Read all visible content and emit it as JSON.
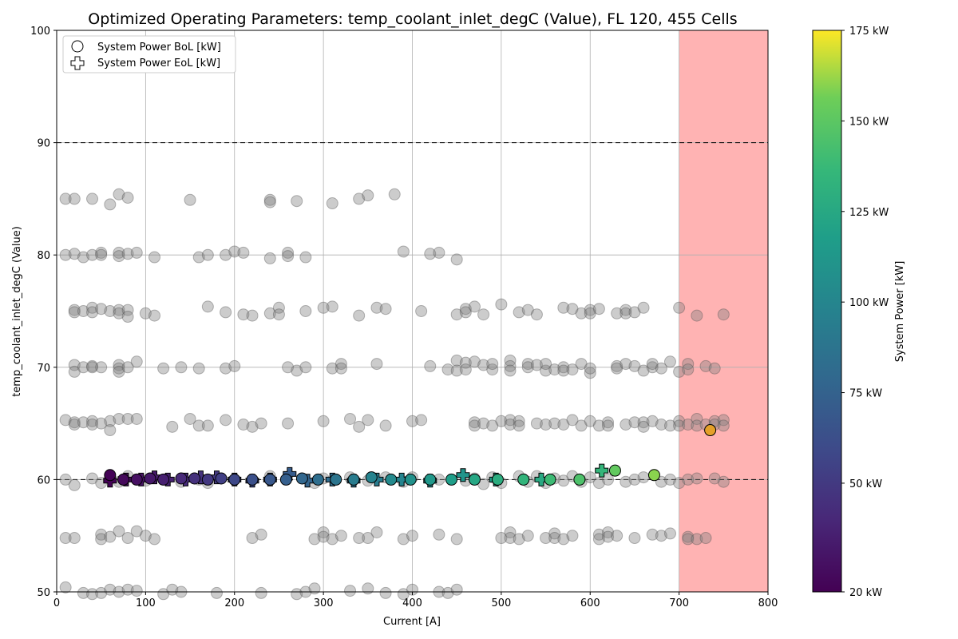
{
  "chart_data": {
    "type": "scatter",
    "title": "Optimized Operating Parameters: temp_coolant_inlet_degC (Value), FL 120, 455 Cells",
    "xlabel": "Current [A]",
    "ylabel": "temp_coolant_inlet_degC (Value)",
    "xlim": [
      0,
      800
    ],
    "ylim": [
      50,
      100
    ],
    "xticks": [
      0,
      100,
      200,
      300,
      400,
      500,
      600,
      700,
      800
    ],
    "yticks": [
      50,
      60,
      70,
      80,
      90,
      100
    ],
    "grid": true,
    "legend_position": "top-left",
    "legend": [
      {
        "label": "System Power BoL [kW]",
        "marker": "circle"
      },
      {
        "label": "System Power EoL [kW]",
        "marker": "plus"
      }
    ],
    "reference_lines": [
      60,
      90
    ],
    "forbidden_region": {
      "x_from": 700,
      "x_to": 800,
      "color": "#ffb3b3"
    },
    "colorbar": {
      "label": "System Power [kW]",
      "min": 20,
      "max": 175,
      "ticks": [
        "20 kW",
        "50 kW",
        "75 kW",
        "100 kW",
        "125 kW",
        "150 kW",
        "175 kW"
      ],
      "tick_values": [
        20,
        50,
        75,
        100,
        125,
        150,
        175
      ]
    },
    "bol_series": [
      {
        "x": 60,
        "y": 60.4,
        "p": 21
      },
      {
        "x": 75,
        "y": 60.0,
        "p": 24
      },
      {
        "x": 90,
        "y": 60.0,
        "p": 28
      },
      {
        "x": 105,
        "y": 60.1,
        "p": 32
      },
      {
        "x": 120,
        "y": 60.0,
        "p": 36
      },
      {
        "x": 140,
        "y": 60.1,
        "p": 41
      },
      {
        "x": 155,
        "y": 60.1,
        "p": 45
      },
      {
        "x": 170,
        "y": 60.0,
        "p": 49
      },
      {
        "x": 185,
        "y": 60.1,
        "p": 53
      },
      {
        "x": 200,
        "y": 60.0,
        "p": 58
      },
      {
        "x": 220,
        "y": 60.0,
        "p": 63
      },
      {
        "x": 240,
        "y": 60.0,
        "p": 68
      },
      {
        "x": 258,
        "y": 60.0,
        "p": 73
      },
      {
        "x": 276,
        "y": 60.1,
        "p": 78
      },
      {
        "x": 294,
        "y": 60.0,
        "p": 83
      },
      {
        "x": 314,
        "y": 60.0,
        "p": 88
      },
      {
        "x": 334,
        "y": 60.0,
        "p": 93
      },
      {
        "x": 354,
        "y": 60.2,
        "p": 98
      },
      {
        "x": 376,
        "y": 60.0,
        "p": 103
      },
      {
        "x": 398,
        "y": 60.0,
        "p": 108
      },
      {
        "x": 420,
        "y": 60.0,
        "p": 113
      },
      {
        "x": 444,
        "y": 60.0,
        "p": 118
      },
      {
        "x": 470,
        "y": 60.0,
        "p": 124
      },
      {
        "x": 496,
        "y": 60.0,
        "p": 129
      },
      {
        "x": 525,
        "y": 60.0,
        "p": 134
      },
      {
        "x": 555,
        "y": 60.0,
        "p": 139
      },
      {
        "x": 588,
        "y": 60.0,
        "p": 145
      },
      {
        "x": 628,
        "y": 60.8,
        "p": 152
      },
      {
        "x": 672,
        "y": 60.4,
        "p": 160
      },
      {
        "x": 735,
        "y": 64.4,
        "p": 170
      }
    ],
    "eol_series": [
      {
        "x": 60,
        "y": 59.9,
        "p": 21
      },
      {
        "x": 78,
        "y": 60.0,
        "p": 25
      },
      {
        "x": 95,
        "y": 60.0,
        "p": 29
      },
      {
        "x": 110,
        "y": 60.2,
        "p": 33
      },
      {
        "x": 125,
        "y": 60.0,
        "p": 37
      },
      {
        "x": 145,
        "y": 60.0,
        "p": 42
      },
      {
        "x": 162,
        "y": 60.2,
        "p": 46
      },
      {
        "x": 180,
        "y": 60.2,
        "p": 50
      },
      {
        "x": 200,
        "y": 60.0,
        "p": 55
      },
      {
        "x": 220,
        "y": 59.9,
        "p": 60
      },
      {
        "x": 240,
        "y": 60.0,
        "p": 65
      },
      {
        "x": 262,
        "y": 60.5,
        "p": 71
      },
      {
        "x": 282,
        "y": 59.9,
        "p": 76
      },
      {
        "x": 310,
        "y": 60.0,
        "p": 82
      },
      {
        "x": 334,
        "y": 59.9,
        "p": 87
      },
      {
        "x": 360,
        "y": 60.0,
        "p": 93
      },
      {
        "x": 388,
        "y": 60.0,
        "p": 99
      },
      {
        "x": 420,
        "y": 59.9,
        "p": 105
      },
      {
        "x": 457,
        "y": 60.4,
        "p": 111
      },
      {
        "x": 494,
        "y": 60.0,
        "p": 118
      },
      {
        "x": 545,
        "y": 60.0,
        "p": 126
      },
      {
        "x": 613,
        "y": 60.8,
        "p": 135
      }
    ],
    "background_points": [
      [
        10,
        85
      ],
      [
        20,
        85
      ],
      [
        40,
        85
      ],
      [
        70,
        85.4
      ],
      [
        80,
        85.1
      ],
      [
        60,
        84.5
      ],
      [
        150,
        84.9
      ],
      [
        240,
        84.9
      ],
      [
        240,
        84.7
      ],
      [
        270,
        84.8
      ],
      [
        310,
        84.6
      ],
      [
        340,
        85
      ],
      [
        350,
        85.3
      ],
      [
        380,
        85.4
      ],
      [
        10,
        80
      ],
      [
        20,
        80.1
      ],
      [
        30,
        79.8
      ],
      [
        40,
        80
      ],
      [
        50,
        80.2
      ],
      [
        50,
        80
      ],
      [
        70,
        80.2
      ],
      [
        70,
        79.9
      ],
      [
        80,
        80.1
      ],
      [
        90,
        80.2
      ],
      [
        110,
        79.8
      ],
      [
        160,
        79.8
      ],
      [
        170,
        80
      ],
      [
        190,
        80
      ],
      [
        200,
        80.3
      ],
      [
        210,
        80.2
      ],
      [
        240,
        79.7
      ],
      [
        260,
        80.2
      ],
      [
        260,
        79.9
      ],
      [
        280,
        79.8
      ],
      [
        390,
        80.3
      ],
      [
        420,
        80.1
      ],
      [
        430,
        80.2
      ],
      [
        450,
        79.6
      ],
      [
        20,
        75.1
      ],
      [
        20,
        74.9
      ],
      [
        30,
        75
      ],
      [
        40,
        75.3
      ],
      [
        40,
        74.9
      ],
      [
        50,
        75.2
      ],
      [
        60,
        75
      ],
      [
        70,
        75.1
      ],
      [
        70,
        74.8
      ],
      [
        80,
        75.1
      ],
      [
        80,
        74.5
      ],
      [
        100,
        74.8
      ],
      [
        110,
        74.6
      ],
      [
        170,
        75.4
      ],
      [
        190,
        74.9
      ],
      [
        210,
        74.7
      ],
      [
        220,
        74.6
      ],
      [
        240,
        74.8
      ],
      [
        250,
        75.3
      ],
      [
        250,
        74.7
      ],
      [
        280,
        75
      ],
      [
        300,
        75.3
      ],
      [
        310,
        75.4
      ],
      [
        340,
        74.6
      ],
      [
        360,
        75.3
      ],
      [
        370,
        75.2
      ],
      [
        410,
        75
      ],
      [
        450,
        74.7
      ],
      [
        460,
        75.2
      ],
      [
        460,
        74.9
      ],
      [
        470,
        75.4
      ],
      [
        480,
        74.7
      ],
      [
        500,
        75.6
      ],
      [
        520,
        74.9
      ],
      [
        530,
        75.1
      ],
      [
        540,
        74.7
      ],
      [
        570,
        75.3
      ],
      [
        580,
        75.2
      ],
      [
        590,
        74.8
      ],
      [
        600,
        75.1
      ],
      [
        600,
        74.8
      ],
      [
        610,
        75.2
      ],
      [
        630,
        74.8
      ],
      [
        640,
        75.1
      ],
      [
        640,
        74.8
      ],
      [
        650,
        74.9
      ],
      [
        660,
        75.3
      ],
      [
        700,
        75.3
      ],
      [
        720,
        74.6
      ],
      [
        750,
        74.7
      ],
      [
        20,
        70.2
      ],
      [
        20,
        69.6
      ],
      [
        30,
        70
      ],
      [
        40,
        70.1
      ],
      [
        40,
        70
      ],
      [
        50,
        70
      ],
      [
        70,
        70.2
      ],
      [
        70,
        69.9
      ],
      [
        70,
        69.6
      ],
      [
        80,
        70
      ],
      [
        90,
        70.5
      ],
      [
        120,
        69.9
      ],
      [
        140,
        70
      ],
      [
        160,
        69.9
      ],
      [
        190,
        69.9
      ],
      [
        200,
        70.1
      ],
      [
        260,
        70
      ],
      [
        270,
        69.7
      ],
      [
        280,
        70
      ],
      [
        310,
        69.9
      ],
      [
        320,
        70.3
      ],
      [
        320,
        69.9
      ],
      [
        360,
        70.3
      ],
      [
        420,
        70.1
      ],
      [
        440,
        69.8
      ],
      [
        450,
        70.6
      ],
      [
        450,
        69.7
      ],
      [
        460,
        70.4
      ],
      [
        460,
        69.8
      ],
      [
        470,
        70.5
      ],
      [
        480,
        70.2
      ],
      [
        490,
        69.8
      ],
      [
        490,
        70.3
      ],
      [
        510,
        70.6
      ],
      [
        510,
        70.1
      ],
      [
        510,
        69.7
      ],
      [
        530,
        70.3
      ],
      [
        530,
        70
      ],
      [
        540,
        70.2
      ],
      [
        550,
        69.7
      ],
      [
        550,
        70.3
      ],
      [
        560,
        69.8
      ],
      [
        570,
        70
      ],
      [
        570,
        69.7
      ],
      [
        580,
        69.8
      ],
      [
        590,
        70.3
      ],
      [
        600,
        69.5
      ],
      [
        600,
        69.9
      ],
      [
        630,
        70.1
      ],
      [
        630,
        69.9
      ],
      [
        640,
        70.3
      ],
      [
        650,
        70.1
      ],
      [
        660,
        69.7
      ],
      [
        670,
        70
      ],
      [
        670,
        70.3
      ],
      [
        680,
        69.9
      ],
      [
        690,
        70.5
      ],
      [
        700,
        69.6
      ],
      [
        710,
        70.3
      ],
      [
        710,
        69.8
      ],
      [
        730,
        70.1
      ],
      [
        740,
        69.9
      ],
      [
        10,
        65.3
      ],
      [
        20,
        65.1
      ],
      [
        20,
        64.9
      ],
      [
        30,
        65.1
      ],
      [
        40,
        65.2
      ],
      [
        40,
        64.9
      ],
      [
        50,
        65
      ],
      [
        60,
        65.2
      ],
      [
        60,
        64.4
      ],
      [
        70,
        65.4
      ],
      [
        80,
        65.4
      ],
      [
        90,
        65.4
      ],
      [
        130,
        64.7
      ],
      [
        150,
        65.4
      ],
      [
        160,
        64.8
      ],
      [
        170,
        64.8
      ],
      [
        190,
        65.3
      ],
      [
        210,
        64.9
      ],
      [
        220,
        64.7
      ],
      [
        230,
        65
      ],
      [
        260,
        65
      ],
      [
        300,
        65.2
      ],
      [
        330,
        65.4
      ],
      [
        340,
        64.7
      ],
      [
        350,
        65.3
      ],
      [
        370,
        64.8
      ],
      [
        400,
        65.2
      ],
      [
        410,
        65.3
      ],
      [
        470,
        65.1
      ],
      [
        470,
        64.8
      ],
      [
        480,
        65
      ],
      [
        490,
        64.8
      ],
      [
        500,
        65.2
      ],
      [
        510,
        65.3
      ],
      [
        510,
        64.9
      ],
      [
        520,
        65.2
      ],
      [
        520,
        64.8
      ],
      [
        540,
        65
      ],
      [
        550,
        64.9
      ],
      [
        560,
        65
      ],
      [
        570,
        64.9
      ],
      [
        580,
        65.3
      ],
      [
        590,
        64.8
      ],
      [
        600,
        65.2
      ],
      [
        610,
        64.8
      ],
      [
        620,
        65.1
      ],
      [
        620,
        64.8
      ],
      [
        640,
        64.9
      ],
      [
        650,
        65.1
      ],
      [
        660,
        65.1
      ],
      [
        660,
        64.7
      ],
      [
        670,
        65.2
      ],
      [
        680,
        64.9
      ],
      [
        690,
        64.8
      ],
      [
        700,
        65.2
      ],
      [
        700,
        64.8
      ],
      [
        710,
        64.9
      ],
      [
        720,
        65.4
      ],
      [
        720,
        64.8
      ],
      [
        730,
        64.9
      ],
      [
        740,
        65.2
      ],
      [
        740,
        64.9
      ],
      [
        750,
        65.3
      ],
      [
        750,
        64.8
      ],
      [
        10,
        60
      ],
      [
        20,
        59.5
      ],
      [
        40,
        60.1
      ],
      [
        50,
        59.7
      ],
      [
        60,
        60.2
      ],
      [
        70,
        59.8
      ],
      [
        80,
        60.3
      ],
      [
        90,
        60
      ],
      [
        100,
        59.9
      ],
      [
        140,
        59.8
      ],
      [
        160,
        60
      ],
      [
        170,
        59.7
      ],
      [
        240,
        60.3
      ],
      [
        290,
        59.7
      ],
      [
        300,
        60.1
      ],
      [
        330,
        60.2
      ],
      [
        350,
        59.9
      ],
      [
        370,
        60.2
      ],
      [
        390,
        59.8
      ],
      [
        400,
        60.2
      ],
      [
        430,
        60
      ],
      [
        460,
        59.9
      ],
      [
        470,
        60.1
      ],
      [
        480,
        59.6
      ],
      [
        490,
        60.2
      ],
      [
        500,
        59.7
      ],
      [
        520,
        60.3
      ],
      [
        530,
        59.8
      ],
      [
        540,
        60.3
      ],
      [
        550,
        59.7
      ],
      [
        560,
        60.1
      ],
      [
        570,
        59.9
      ],
      [
        580,
        60.3
      ],
      [
        590,
        59.8
      ],
      [
        600,
        60.2
      ],
      [
        610,
        59.7
      ],
      [
        620,
        60
      ],
      [
        640,
        59.8
      ],
      [
        650,
        60
      ],
      [
        660,
        60.2
      ],
      [
        680,
        59.8
      ],
      [
        690,
        60
      ],
      [
        700,
        59.7
      ],
      [
        710,
        60
      ],
      [
        720,
        60.1
      ],
      [
        740,
        60.1
      ],
      [
        750,
        59.8
      ],
      [
        10,
        54.8
      ],
      [
        20,
        54.8
      ],
      [
        50,
        55.1
      ],
      [
        50,
        54.7
      ],
      [
        60,
        54.9
      ],
      [
        70,
        55.4
      ],
      [
        80,
        54.8
      ],
      [
        90,
        55.4
      ],
      [
        100,
        55
      ],
      [
        110,
        54.7
      ],
      [
        220,
        54.8
      ],
      [
        230,
        55.1
      ],
      [
        290,
        54.7
      ],
      [
        300,
        55.3
      ],
      [
        300,
        54.9
      ],
      [
        310,
        54.7
      ],
      [
        320,
        55
      ],
      [
        340,
        54.8
      ],
      [
        350,
        54.8
      ],
      [
        360,
        55.3
      ],
      [
        390,
        54.7
      ],
      [
        400,
        55
      ],
      [
        430,
        55.1
      ],
      [
        450,
        54.7
      ],
      [
        500,
        54.8
      ],
      [
        510,
        55.3
      ],
      [
        510,
        54.8
      ],
      [
        520,
        54.7
      ],
      [
        530,
        55
      ],
      [
        550,
        54.8
      ],
      [
        560,
        55.2
      ],
      [
        560,
        54.8
      ],
      [
        570,
        54.7
      ],
      [
        580,
        55
      ],
      [
        610,
        55.1
      ],
      [
        610,
        54.7
      ],
      [
        620,
        55.3
      ],
      [
        620,
        54.9
      ],
      [
        630,
        55
      ],
      [
        650,
        54.8
      ],
      [
        670,
        55.1
      ],
      [
        680,
        55
      ],
      [
        690,
        55.2
      ],
      [
        710,
        54.9
      ],
      [
        710,
        54.7
      ],
      [
        720,
        54.7
      ],
      [
        730,
        54.8
      ],
      [
        10,
        50.4
      ],
      [
        30,
        49.9
      ],
      [
        40,
        49.8
      ],
      [
        50,
        49.9
      ],
      [
        60,
        50.2
      ],
      [
        70,
        50
      ],
      [
        80,
        50.2
      ],
      [
        90,
        50.1
      ],
      [
        120,
        49.8
      ],
      [
        130,
        50.2
      ],
      [
        140,
        50
      ],
      [
        180,
        49.9
      ],
      [
        230,
        49.9
      ],
      [
        270,
        49.8
      ],
      [
        280,
        50
      ],
      [
        290,
        50.3
      ],
      [
        330,
        50.1
      ],
      [
        350,
        50.3
      ],
      [
        370,
        49.9
      ],
      [
        390,
        49.8
      ],
      [
        400,
        50.2
      ],
      [
        430,
        50
      ],
      [
        440,
        49.9
      ],
      [
        450,
        50.2
      ]
    ]
  }
}
